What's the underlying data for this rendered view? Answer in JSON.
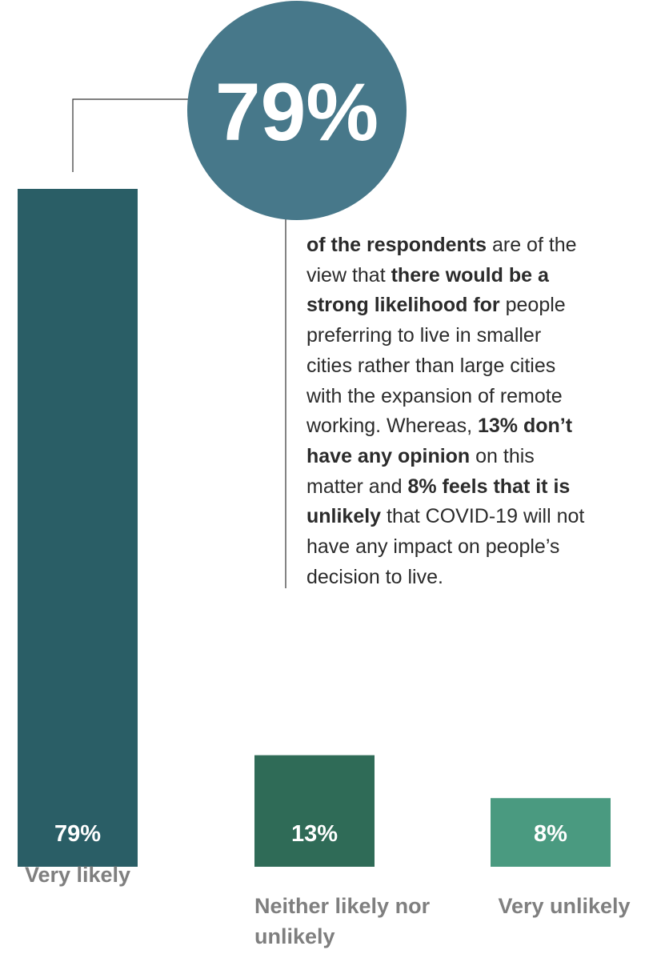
{
  "chart_data": {
    "type": "bar",
    "highlight": "79%",
    "description": [
      [
        {
          "text": "of the respondents",
          "bold": true
        },
        {
          "text": " are of the"
        }
      ],
      [
        {
          "text": "view that "
        },
        {
          "text": "there would be a",
          "bold": true
        }
      ],
      [
        {
          "text": "strong likelihood for",
          "bold": true
        },
        {
          "text": " people"
        }
      ],
      [
        {
          "text": "preferring to live in smaller"
        }
      ],
      [
        {
          "text": "cities rather than large cities"
        }
      ],
      [
        {
          "text": "with the expansion of remote"
        }
      ],
      [
        {
          "text": "working. Whereas, "
        },
        {
          "text": "13% don’t",
          "bold": true
        }
      ],
      [
        {
          "text": "have any opinion",
          "bold": true
        },
        {
          "text": " on this"
        }
      ],
      [
        {
          "text": "matter and "
        },
        {
          "text": "8% feels that it is",
          "bold": true
        }
      ],
      [
        {
          "text": "unlikely",
          "bold": true
        },
        {
          "text": " that COVID-19 will not"
        }
      ],
      [
        {
          "text": "have any impact on people’s"
        }
      ],
      [
        {
          "text": "decision to live."
        }
      ]
    ],
    "categories": [
      "Very likely",
      "Neither likely nor unlikely",
      "Very unlikely"
    ],
    "values": [
      79,
      13,
      8
    ],
    "value_labels": [
      "79%",
      "13%",
      "8%"
    ],
    "colors": [
      "#2a5e66",
      "#2f6b57",
      "#4a9a80"
    ],
    "highlight_color": "#47788a"
  }
}
